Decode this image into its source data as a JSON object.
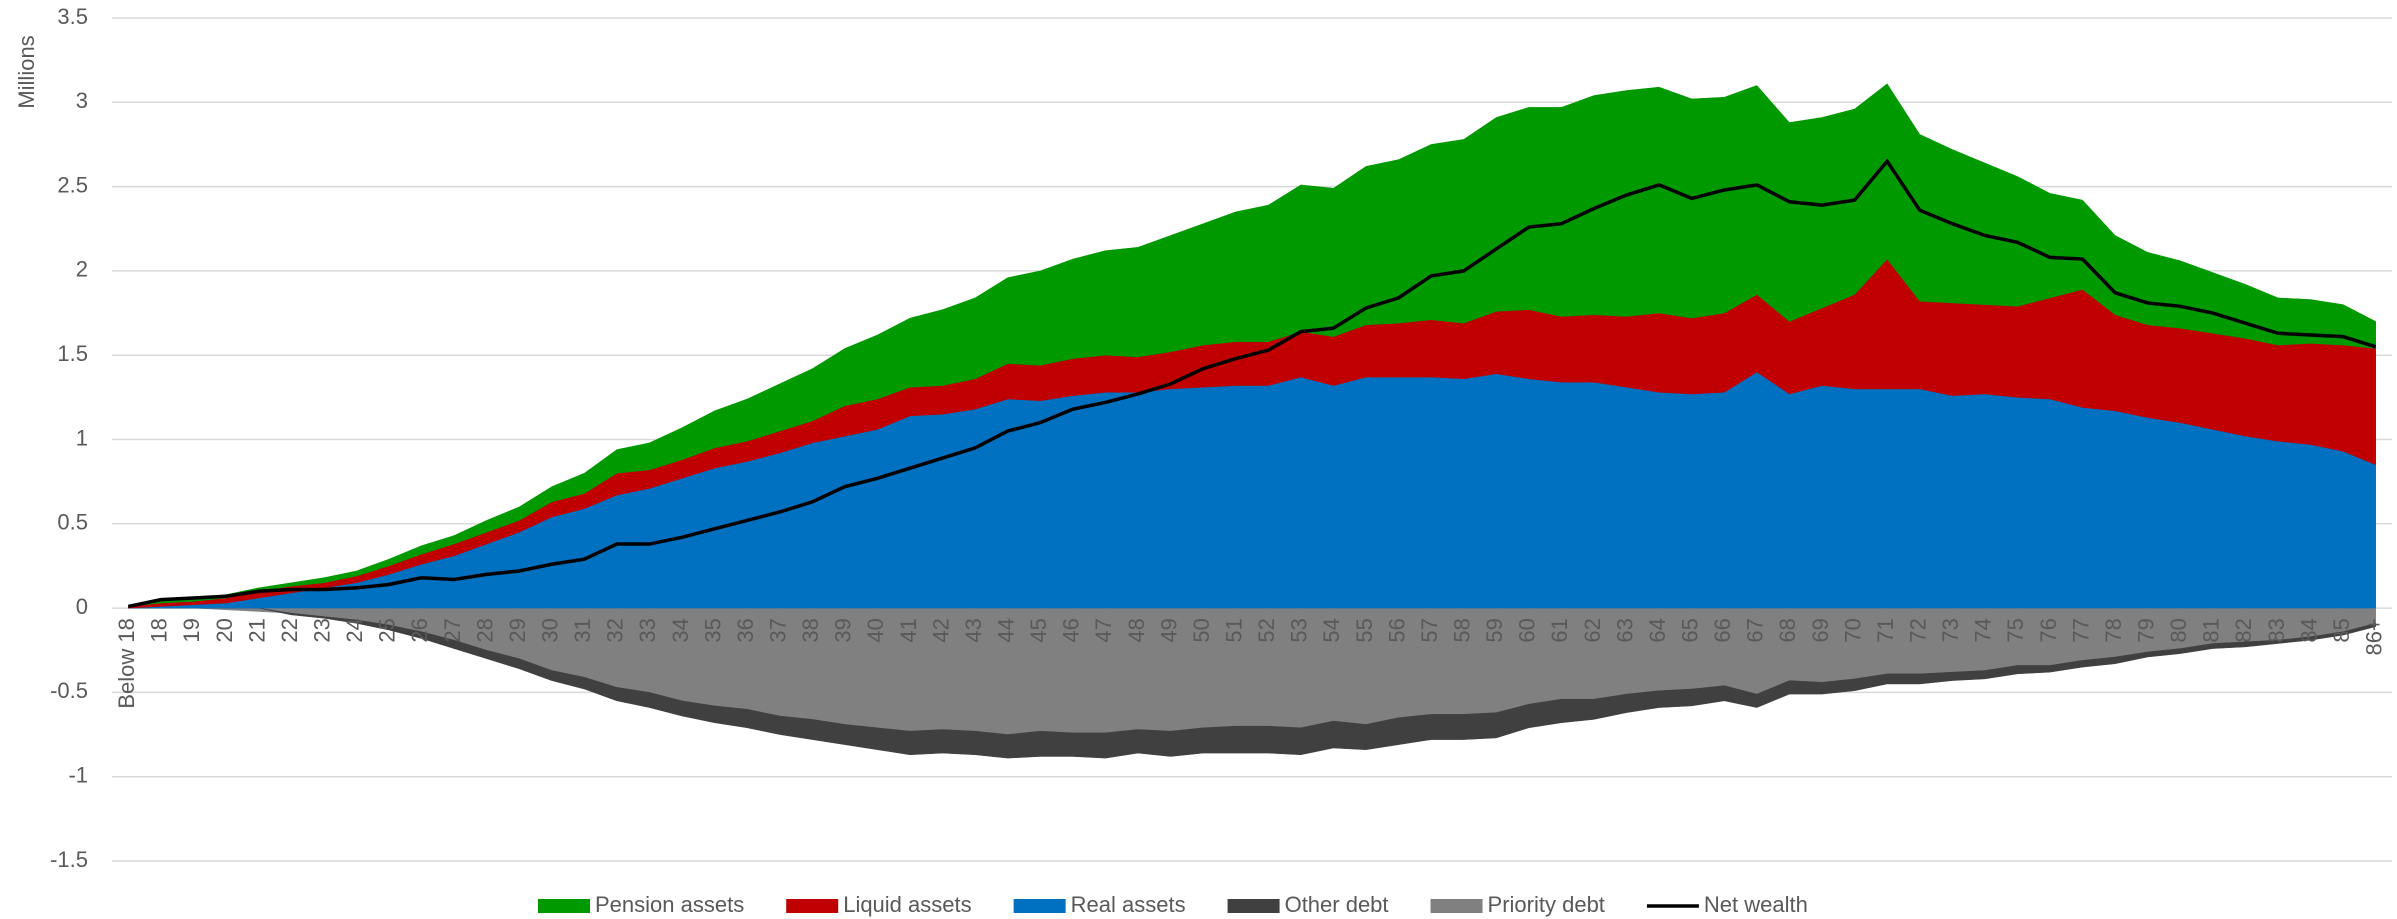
{
  "chart_data": {
    "type": "area",
    "y_label": "Millions",
    "categories": [
      "Below 18",
      "18",
      "19",
      "20",
      "21",
      "22",
      "23",
      "24",
      "25",
      "26",
      "27",
      "28",
      "29",
      "30",
      "31",
      "32",
      "33",
      "34",
      "35",
      "36",
      "37",
      "38",
      "39",
      "40",
      "41",
      "42",
      "43",
      "44",
      "45",
      "46",
      "47",
      "48",
      "49",
      "50",
      "51",
      "52",
      "53",
      "54",
      "55",
      "56",
      "57",
      "58",
      "59",
      "60",
      "61",
      "62",
      "63",
      "64",
      "65",
      "66",
      "67",
      "68",
      "69",
      "70",
      "71",
      "72",
      "73",
      "74",
      "75",
      "76",
      "77",
      "78",
      "79",
      "80",
      "81",
      "82",
      "83",
      "84",
      "85",
      "86+"
    ],
    "ylim": [
      -1.5,
      3.5
    ],
    "yticks": [
      -1.5,
      -1,
      -0.5,
      0,
      0.5,
      1,
      1.5,
      2,
      2.5,
      3,
      3.5
    ],
    "grid": true,
    "series": [
      {
        "name": "Pension assets",
        "type": "area",
        "color": "#009900",
        "values": [
          0,
          0.02,
          0.02,
          0.02,
          0.02,
          0.02,
          0.03,
          0.03,
          0.04,
          0.05,
          0.05,
          0.07,
          0.08,
          0.09,
          0.12,
          0.14,
          0.16,
          0.19,
          0.22,
          0.25,
          0.28,
          0.31,
          0.34,
          0.38,
          0.41,
          0.45,
          0.48,
          0.51,
          0.56,
          0.59,
          0.62,
          0.65,
          0.69,
          0.72,
          0.77,
          0.81,
          0.87,
          0.88,
          0.94,
          0.97,
          1.04,
          1.09,
          1.15,
          1.2,
          1.24,
          1.3,
          1.34,
          1.34,
          1.3,
          1.28,
          1.24,
          1.18,
          1.13,
          1.1,
          1.04,
          0.99,
          0.91,
          0.84,
          0.77,
          0.62,
          0.53,
          0.47,
          0.43,
          0.4,
          0.36,
          0.32,
          0.28,
          0.26,
          0.24,
          0.16
        ]
      },
      {
        "name": "Liquid assets",
        "type": "area",
        "color": "#c00000",
        "values": [
          0.01,
          0.02,
          0.02,
          0.03,
          0.04,
          0.04,
          0.03,
          0.04,
          0.05,
          0.06,
          0.07,
          0.07,
          0.07,
          0.09,
          0.09,
          0.13,
          0.11,
          0.11,
          0.12,
          0.12,
          0.13,
          0.13,
          0.18,
          0.18,
          0.17,
          0.17,
          0.18,
          0.21,
          0.21,
          0.22,
          0.22,
          0.21,
          0.22,
          0.25,
          0.26,
          0.26,
          0.27,
          0.29,
          0.31,
          0.32,
          0.34,
          0.33,
          0.37,
          0.41,
          0.39,
          0.4,
          0.42,
          0.47,
          0.45,
          0.47,
          0.46,
          0.43,
          0.46,
          0.56,
          0.77,
          0.52,
          0.55,
          0.53,
          0.54,
          0.6,
          0.7,
          0.57,
          0.55,
          0.56,
          0.57,
          0.58,
          0.57,
          0.6,
          0.63,
          0.69
        ]
      },
      {
        "name": "Real assets",
        "type": "area",
        "color": "#0070c0",
        "values": [
          0,
          0.01,
          0.02,
          0.03,
          0.06,
          0.09,
          0.12,
          0.15,
          0.2,
          0.26,
          0.31,
          0.38,
          0.45,
          0.54,
          0.59,
          0.67,
          0.71,
          0.77,
          0.83,
          0.87,
          0.92,
          0.98,
          1.02,
          1.06,
          1.14,
          1.15,
          1.18,
          1.24,
          1.23,
          1.26,
          1.28,
          1.28,
          1.3,
          1.31,
          1.32,
          1.32,
          1.37,
          1.32,
          1.37,
          1.37,
          1.37,
          1.36,
          1.39,
          1.36,
          1.34,
          1.34,
          1.31,
          1.28,
          1.27,
          1.28,
          1.4,
          1.27,
          1.32,
          1.3,
          1.3,
          1.3,
          1.26,
          1.27,
          1.25,
          1.24,
          1.19,
          1.17,
          1.13,
          1.1,
          1.06,
          1.02,
          0.99,
          0.97,
          0.93,
          0.85
        ]
      },
      {
        "name": "Other debt",
        "type": "area",
        "color": "#404040",
        "values": [
          0,
          0,
          0,
          0,
          0,
          -0.01,
          -0.01,
          -0.02,
          -0.03,
          -0.04,
          -0.05,
          -0.05,
          -0.06,
          -0.06,
          -0.07,
          -0.08,
          -0.09,
          -0.09,
          -0.1,
          -0.11,
          -0.11,
          -0.12,
          -0.12,
          -0.13,
          -0.14,
          -0.14,
          -0.14,
          -0.14,
          -0.15,
          -0.14,
          -0.15,
          -0.14,
          -0.15,
          -0.15,
          -0.16,
          -0.16,
          -0.16,
          -0.16,
          -0.15,
          -0.16,
          -0.15,
          -0.15,
          -0.15,
          -0.14,
          -0.14,
          -0.12,
          -0.11,
          -0.1,
          -0.1,
          -0.09,
          -0.08,
          -0.08,
          -0.07,
          -0.07,
          -0.06,
          -0.06,
          -0.05,
          -0.05,
          -0.05,
          -0.04,
          -0.04,
          -0.04,
          -0.03,
          -0.03,
          -0.03,
          -0.03,
          -0.02,
          -0.02,
          -0.02,
          -0.02
        ]
      },
      {
        "name": "Priority debt",
        "type": "area",
        "color": "#808080",
        "values": [
          0,
          0,
          0,
          -0.01,
          -0.02,
          -0.03,
          -0.05,
          -0.07,
          -0.1,
          -0.14,
          -0.19,
          -0.25,
          -0.3,
          -0.37,
          -0.41,
          -0.47,
          -0.5,
          -0.55,
          -0.58,
          -0.6,
          -0.64,
          -0.66,
          -0.69,
          -0.71,
          -0.73,
          -0.72,
          -0.73,
          -0.75,
          -0.73,
          -0.74,
          -0.74,
          -0.72,
          -0.73,
          -0.71,
          -0.7,
          -0.7,
          -0.71,
          -0.67,
          -0.69,
          -0.65,
          -0.63,
          -0.63,
          -0.62,
          -0.57,
          -0.54,
          -0.54,
          -0.51,
          -0.49,
          -0.48,
          -0.46,
          -0.51,
          -0.43,
          -0.44,
          -0.42,
          -0.39,
          -0.39,
          -0.38,
          -0.37,
          -0.34,
          -0.34,
          -0.31,
          -0.29,
          -0.26,
          -0.24,
          -0.21,
          -0.2,
          -0.19,
          -0.17,
          -0.14,
          -0.09
        ]
      },
      {
        "name": "Net wealth",
        "type": "line",
        "color": "#000000",
        "values": [
          0.01,
          0.05,
          0.06,
          0.07,
          0.1,
          0.11,
          0.11,
          0.12,
          0.14,
          0.18,
          0.17,
          0.2,
          0.22,
          0.26,
          0.29,
          0.38,
          0.38,
          0.42,
          0.47,
          0.52,
          0.57,
          0.63,
          0.72,
          0.77,
          0.83,
          0.89,
          0.95,
          1.05,
          1.1,
          1.18,
          1.22,
          1.27,
          1.33,
          1.42,
          1.48,
          1.53,
          1.64,
          1.66,
          1.78,
          1.84,
          1.97,
          2.0,
          2.13,
          2.26,
          2.28,
          2.37,
          2.45,
          2.51,
          2.43,
          2.48,
          2.51,
          2.41,
          2.39,
          2.42,
          2.65,
          2.36,
          2.28,
          2.21,
          2.17,
          2.08,
          2.07,
          1.87,
          1.81,
          1.79,
          1.75,
          1.69,
          1.63,
          1.62,
          1.61,
          1.55
        ]
      }
    ]
  }
}
